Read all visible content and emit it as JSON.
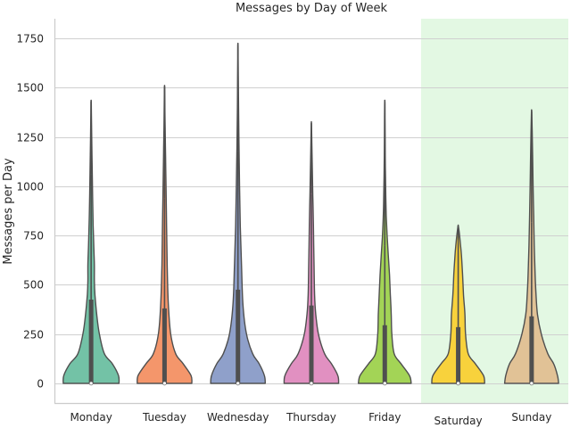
{
  "chart_data": {
    "type": "violin",
    "title": "Messages by Day of Week",
    "xlabel": "",
    "ylabel": "Messages per Day",
    "ylim": [
      -100,
      1850
    ],
    "yticks": [
      0,
      250,
      500,
      750,
      1000,
      1250,
      1500,
      1750
    ],
    "ytick_labels": [
      "0",
      "250",
      "500",
      "750",
      "1000",
      "1250",
      "1500",
      "1750"
    ],
    "grid": "horizontal",
    "highlight": {
      "label_range": [
        "Saturday",
        "Sunday"
      ],
      "color": "#e3f8e3"
    },
    "categories": [
      "Monday",
      "Tuesday",
      "Wednesday",
      "Thursday",
      "Friday",
      "Saturday",
      "Sunday"
    ],
    "colors": [
      "#73c2a6",
      "#f4966b",
      "#8fa0ca",
      "#e190c1",
      "#a3d456",
      "#f8d23c",
      "#e1c296"
    ],
    "series": [
      {
        "category": "Monday",
        "min": 0,
        "q1": 0,
        "median": 0,
        "q3": 425,
        "whisker_high": 1060,
        "max": 1430,
        "profile": [
          [
            0,
            0.95
          ],
          [
            40,
            0.93
          ],
          [
            100,
            0.72
          ],
          [
            150,
            0.45
          ],
          [
            250,
            0.28
          ],
          [
            350,
            0.19
          ],
          [
            450,
            0.13
          ],
          [
            520,
            0.11
          ],
          [
            600,
            0.11
          ],
          [
            700,
            0.09
          ],
          [
            800,
            0.07
          ],
          [
            950,
            0.05
          ],
          [
            1100,
            0.035
          ],
          [
            1250,
            0.02
          ],
          [
            1350,
            0.01
          ],
          [
            1430,
            0.004
          ]
        ]
      },
      {
        "category": "Tuesday",
        "min": 0,
        "q1": 0,
        "median": 0,
        "q3": 380,
        "whisker_high": 940,
        "max": 1505,
        "profile": [
          [
            0,
            0.93
          ],
          [
            40,
            0.9
          ],
          [
            100,
            0.63
          ],
          [
            150,
            0.38
          ],
          [
            250,
            0.21
          ],
          [
            400,
            0.13
          ],
          [
            600,
            0.09
          ],
          [
            800,
            0.07
          ],
          [
            1000,
            0.05
          ],
          [
            1150,
            0.035
          ],
          [
            1300,
            0.02
          ],
          [
            1420,
            0.01
          ],
          [
            1505,
            0.004
          ]
        ]
      },
      {
        "category": "Wednesday",
        "min": 0,
        "q1": 0,
        "median": 0,
        "q3": 475,
        "whisker_high": 1180,
        "max": 1720,
        "profile": [
          [
            0,
            0.93
          ],
          [
            40,
            0.9
          ],
          [
            100,
            0.72
          ],
          [
            150,
            0.5
          ],
          [
            250,
            0.29
          ],
          [
            400,
            0.17
          ],
          [
            600,
            0.12
          ],
          [
            800,
            0.08
          ],
          [
            1000,
            0.055
          ],
          [
            1200,
            0.035
          ],
          [
            1400,
            0.02
          ],
          [
            1550,
            0.012
          ],
          [
            1650,
            0.007
          ],
          [
            1720,
            0.004
          ]
        ]
      },
      {
        "category": "Thursday",
        "min": 0,
        "q1": 0,
        "median": 0,
        "q3": 395,
        "whisker_high": 960,
        "max": 1320,
        "profile": [
          [
            0,
            0.93
          ],
          [
            40,
            0.9
          ],
          [
            100,
            0.68
          ],
          [
            150,
            0.45
          ],
          [
            250,
            0.24
          ],
          [
            350,
            0.15
          ],
          [
            450,
            0.11
          ],
          [
            600,
            0.09
          ],
          [
            800,
            0.07
          ],
          [
            950,
            0.05
          ],
          [
            1100,
            0.03
          ],
          [
            1220,
            0.015
          ],
          [
            1320,
            0.004
          ]
        ]
      },
      {
        "category": "Friday",
        "min": 0,
        "q1": 0,
        "median": 0,
        "q3": 295,
        "whisker_high": 700,
        "max": 1430,
        "profile": [
          [
            0,
            0.9
          ],
          [
            40,
            0.84
          ],
          [
            100,
            0.55
          ],
          [
            150,
            0.32
          ],
          [
            250,
            0.24
          ],
          [
            350,
            0.22
          ],
          [
            450,
            0.19
          ],
          [
            550,
            0.16
          ],
          [
            650,
            0.12
          ],
          [
            750,
            0.08
          ],
          [
            850,
            0.05
          ],
          [
            950,
            0.035
          ],
          [
            1100,
            0.02
          ],
          [
            1250,
            0.012
          ],
          [
            1350,
            0.008
          ],
          [
            1430,
            0.004
          ]
        ]
      },
      {
        "category": "Saturday",
        "min": 0,
        "q1": 0,
        "median": 0,
        "q3": 285,
        "whisker_high": 660,
        "max": 800,
        "profile": [
          [
            0,
            0.9
          ],
          [
            40,
            0.86
          ],
          [
            100,
            0.58
          ],
          [
            150,
            0.34
          ],
          [
            250,
            0.25
          ],
          [
            350,
            0.23
          ],
          [
            450,
            0.18
          ],
          [
            550,
            0.15
          ],
          [
            650,
            0.11
          ],
          [
            700,
            0.08
          ],
          [
            760,
            0.04
          ],
          [
            800,
            0.004
          ]
        ]
      },
      {
        "category": "Sunday",
        "min": 0,
        "q1": 0,
        "median": 0,
        "q3": 340,
        "whisker_high": 815,
        "max": 1380,
        "profile": [
          [
            0,
            0.92
          ],
          [
            40,
            0.88
          ],
          [
            100,
            0.75
          ],
          [
            150,
            0.55
          ],
          [
            250,
            0.33
          ],
          [
            350,
            0.2
          ],
          [
            450,
            0.15
          ],
          [
            550,
            0.12
          ],
          [
            700,
            0.09
          ],
          [
            850,
            0.07
          ],
          [
            1000,
            0.05
          ],
          [
            1150,
            0.035
          ],
          [
            1280,
            0.02
          ],
          [
            1380,
            0.004
          ]
        ]
      }
    ]
  }
}
